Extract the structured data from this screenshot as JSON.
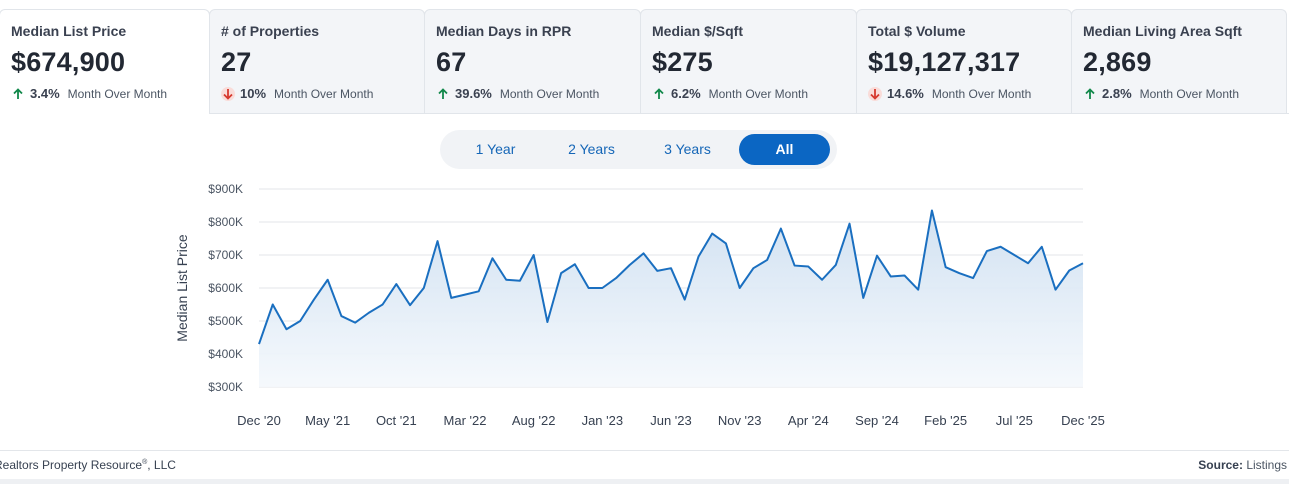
{
  "tabs": [
    {
      "label": "Median List Price",
      "value": "$674,900",
      "direction": "up",
      "pct": "3.4%",
      "period": "Month Over Month"
    },
    {
      "label": "# of Properties",
      "value": "27",
      "direction": "down",
      "pct": "10%",
      "period": "Month Over Month"
    },
    {
      "label": "Median Days in RPR",
      "value": "67",
      "direction": "up",
      "pct": "39.6%",
      "period": "Month Over Month"
    },
    {
      "label": "Median $/Sqft",
      "value": "$275",
      "direction": "up",
      "pct": "6.2%",
      "period": "Month Over Month"
    },
    {
      "label": "Total $ Volume",
      "value": "$19,127,317",
      "direction": "down",
      "pct": "14.6%",
      "period": "Month Over Month"
    },
    {
      "label": "Median Living Area Sqft",
      "value": "2,869",
      "direction": "up",
      "pct": "2.8%",
      "period": "Month Over Month"
    }
  ],
  "range": {
    "options": [
      "1 Year",
      "2 Years",
      "3 Years",
      "All"
    ],
    "selected": "All"
  },
  "colors": {
    "line": "#1a6fc0",
    "area_top": "#cfe0f1",
    "area_bottom": "#f4f8fc",
    "up": "#11884a",
    "down": "#d6392e",
    "active": "#0b66c3"
  },
  "chart_data": {
    "type": "area",
    "ylabel": "Median List Price",
    "xlabel": "",
    "ylim": [
      300000,
      900000
    ],
    "yticks": [
      300000,
      400000,
      500000,
      600000,
      700000,
      800000,
      900000
    ],
    "ytick_labels": [
      "$300K",
      "$400K",
      "$500K",
      "$600K",
      "$700K",
      "$800K",
      "$900K"
    ],
    "xtick_labels": [
      "Dec '20",
      "May '21",
      "Oct '21",
      "Mar '22",
      "Aug '22",
      "Jan '23",
      "Jun '23",
      "Nov '23",
      "Apr '24",
      "Sep '24",
      "Feb '25",
      "Jul '25",
      "Dec '25"
    ],
    "xtick_indices": [
      0,
      5,
      10,
      15,
      20,
      25,
      30,
      35,
      40,
      45,
      50,
      55,
      60
    ],
    "series": [
      {
        "name": "Median List Price",
        "values": [
          430000,
          550000,
          475000,
          500000,
          565000,
          625000,
          515000,
          495000,
          525000,
          550000,
          612000,
          548000,
          600000,
          742000,
          570000,
          580000,
          590000,
          690000,
          625000,
          622000,
          700000,
          497000,
          645000,
          672000,
          600000,
          600000,
          630000,
          670000,
          705000,
          652000,
          660000,
          565000,
          695000,
          765000,
          735000,
          600000,
          660000,
          685000,
          780000,
          668000,
          665000,
          625000,
          670000,
          795000,
          570000,
          698000,
          635000,
          638000,
          595000,
          835000,
          663000,
          645000,
          630000,
          712000,
          725000,
          700000,
          675000,
          725000,
          595000,
          653000,
          675000
        ]
      }
    ]
  },
  "footer": {
    "left_text": "Realtors Property Resource",
    "left_mark": "®",
    "left_suffix": ", LLC",
    "source_label": "Source:",
    "source_value": "Listings"
  }
}
